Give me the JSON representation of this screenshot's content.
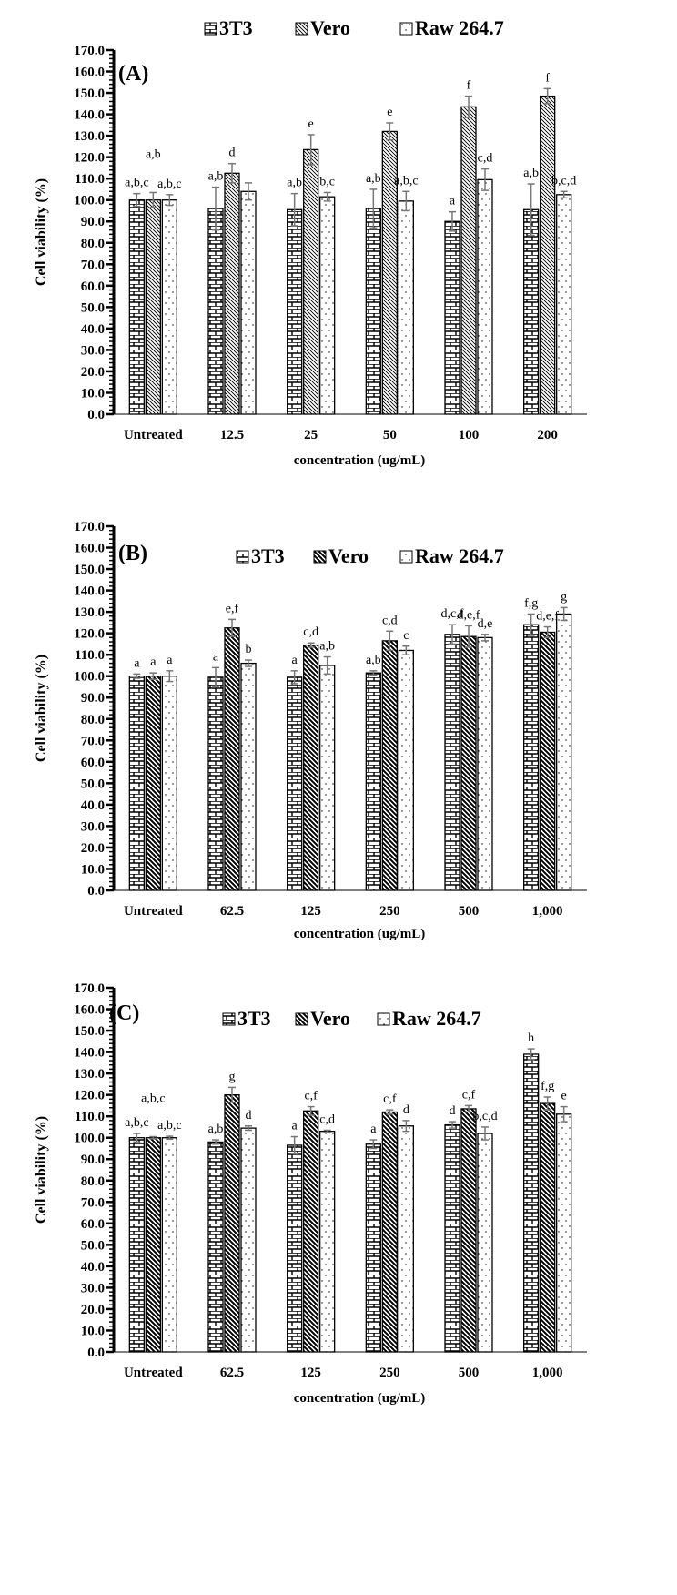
{
  "chart_data": [
    {
      "type": "bar",
      "panel_label": "(A)",
      "categories": [
        "Untreated",
        "12.5",
        "25",
        "50",
        "100",
        "200"
      ],
      "xlabel": "concentration (ug/mL)",
      "ylabel": "Cell  viability (%)",
      "ylim": [
        0,
        170
      ],
      "yticks": [
        "0.0",
        "10.0",
        "20.0",
        "30.0",
        "40.0",
        "50.0",
        "60.0",
        "70.0",
        "80.0",
        "90.0",
        "100.0",
        "110.0",
        "120.0",
        "130.0",
        "140.0",
        "150.0",
        "160.0",
        "170.0"
      ],
      "legend_position": "top",
      "series": [
        {
          "name": "3T3",
          "pattern": "brick",
          "values": [
            100,
            96,
            95.5,
            96,
            90,
            95.5
          ],
          "errors": [
            3,
            10,
            7.5,
            9,
            4.5,
            12
          ],
          "letters": [
            "a,b,c",
            "a,b",
            "a,b",
            "a,b",
            "a",
            "a,b"
          ]
        },
        {
          "name": "Vero",
          "pattern": "light-hatch",
          "values": [
            100,
            112.5,
            123.5,
            132,
            143.5,
            148.5
          ],
          "errors": [
            3.5,
            4.5,
            7,
            4,
            5,
            3.5
          ],
          "letters": [
            "a,b",
            "d",
            "e",
            "e",
            "f",
            "f"
          ]
        },
        {
          "name": "Raw 264.7",
          "pattern": "dots",
          "values": [
            100,
            104,
            101.5,
            99.5,
            109.5,
            102.5
          ],
          "errors": [
            2.5,
            4,
            2,
            4.5,
            5,
            1.5
          ],
          "letters": [
            "a,b,c",
            "",
            "b,c",
            "a,b,c",
            "c,d",
            "b,c,d"
          ]
        }
      ]
    },
    {
      "type": "bar",
      "panel_label": "(B)",
      "categories": [
        "Untreated",
        "62.5",
        "125",
        "250",
        "500",
        "1,000"
      ],
      "xlabel": "concentration (ug/mL)",
      "ylabel": "Cell  viability (%)",
      "ylim": [
        0,
        170
      ],
      "yticks": [
        "0.0",
        "10.0",
        "20.0",
        "30.0",
        "40.0",
        "50.0",
        "60.0",
        "70.0",
        "80.0",
        "90.0",
        "100.0",
        "110.0",
        "120.0",
        "130.0",
        "140.0",
        "150.0",
        "160.0",
        "170.0"
      ],
      "legend_position": "top",
      "series": [
        {
          "name": "3T3",
          "pattern": "brick",
          "values": [
            100,
            99.5,
            99.5,
            101.5,
            119.5,
            124
          ],
          "errors": [
            1,
            4.5,
            3,
            1,
            4.5,
            5
          ],
          "letters": [
            "a",
            "a",
            "a",
            "a,b",
            "d,c,f",
            "f,g"
          ]
        },
        {
          "name": "Vero",
          "pattern": "dense-hatch",
          "values": [
            100,
            122.5,
            114.5,
            116.5,
            118.5,
            120.5
          ],
          "errors": [
            1.5,
            4,
            1,
            4.5,
            5,
            2.5
          ],
          "letters": [
            "a",
            "e,f",
            "c,d",
            "c,d",
            "d,e,f",
            "d,e,f"
          ]
        },
        {
          "name": "Raw 264.7",
          "pattern": "dots",
          "values": [
            100,
            106,
            105,
            112,
            118,
            129
          ],
          "errors": [
            2.5,
            1.5,
            4,
            2,
            1.5,
            3
          ],
          "letters": [
            "a",
            "b",
            "a,b",
            "c",
            "d,e",
            "g"
          ]
        }
      ]
    },
    {
      "type": "bar",
      "panel_label": "(C)",
      "categories": [
        "Untreated",
        "62.5",
        "125",
        "250",
        "500",
        "1,000"
      ],
      "xlabel": "concentration (ug/mL)",
      "ylabel": "Cell  viability (%)",
      "ylim": [
        0,
        170
      ],
      "yticks": [
        "0.0",
        "10.0",
        "20.0",
        "30.0",
        "40.0",
        "50.0",
        "60.0",
        "70.0",
        "80.0",
        "90.0",
        "100.0",
        "110.0",
        "120.0",
        "130.0",
        "140.0",
        "150.0",
        "160.0",
        "170.0"
      ],
      "legend_position": "top",
      "series": [
        {
          "name": "3T3",
          "pattern": "brick",
          "values": [
            100,
            98,
            96.5,
            97,
            106,
            139
          ],
          "errors": [
            2,
            1,
            4,
            2,
            1.5,
            2.5
          ],
          "letters": [
            "a,b,c",
            "a,b",
            "a",
            "a",
            "d",
            "h"
          ]
        },
        {
          "name": "Vero",
          "pattern": "dense-hatch",
          "values": [
            100,
            120,
            112.5,
            112,
            113.5,
            116
          ],
          "errors": [
            0.5,
            3.5,
            2,
            1,
            1.5,
            3
          ],
          "letters": [
            "a,b,c",
            "g",
            "c,f",
            "c,f",
            "c,f",
            "f,g"
          ]
        },
        {
          "name": "Raw 264.7",
          "pattern": "dots",
          "values": [
            100,
            104.5,
            103,
            105.5,
            102,
            111
          ],
          "errors": [
            0.7,
            1,
            0.5,
            2.5,
            3,
            3.5
          ],
          "letters": [
            "a,b,c",
            "d",
            "c,d",
            "d",
            "b,c,d",
            "e"
          ]
        }
      ]
    }
  ]
}
